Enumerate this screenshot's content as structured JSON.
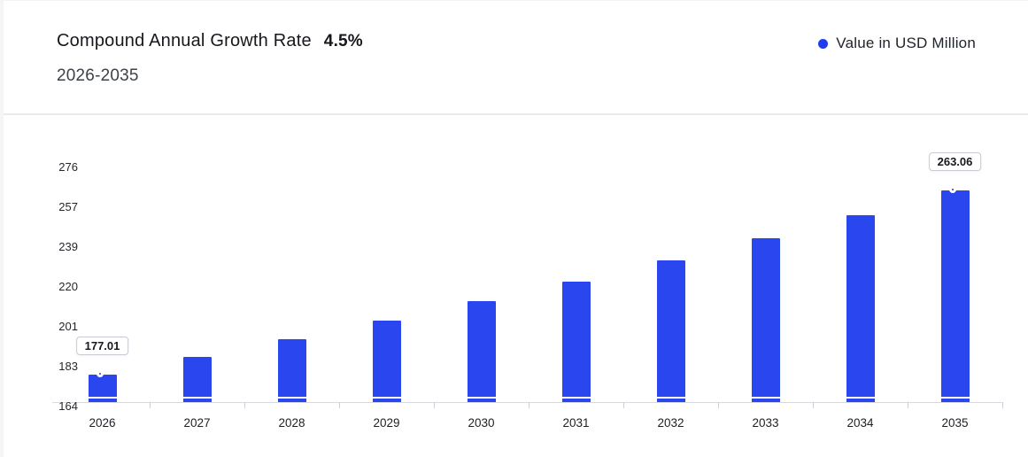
{
  "header": {
    "title": "Compound Annual Growth Rate",
    "cagr_value": "4.5%",
    "subtitle": "2026-2035",
    "legend": {
      "label": "Value in USD Million",
      "dot_color": "#1e3df0"
    }
  },
  "chart_data": {
    "type": "bar",
    "title": "Compound Annual Growth Rate 4.5% 2026-2035",
    "unit": "USD Million",
    "categories": [
      "2026",
      "2027",
      "2028",
      "2029",
      "2030",
      "2031",
      "2032",
      "2033",
      "2034",
      "2035"
    ],
    "values": [
      177.01,
      184.98,
      193.3,
      202.0,
      211.09,
      220.59,
      230.51,
      240.89,
      251.73,
      263.06
    ],
    "labeled_points": [
      {
        "index": 0,
        "category": "2026",
        "label": "177.01"
      },
      {
        "index": 9,
        "category": "2035",
        "label": "263.06"
      }
    ],
    "y_ticks": [
      "164",
      "183",
      "201",
      "220",
      "239",
      "257",
      "276"
    ],
    "ylim": [
      164,
      276
    ],
    "xlabel": "",
    "ylabel": "",
    "grid": false,
    "legend_position": "top-right",
    "bar_color": "#2946ef",
    "marker_color": "#1e3df0",
    "axis_line_color": "#d8dade"
  }
}
